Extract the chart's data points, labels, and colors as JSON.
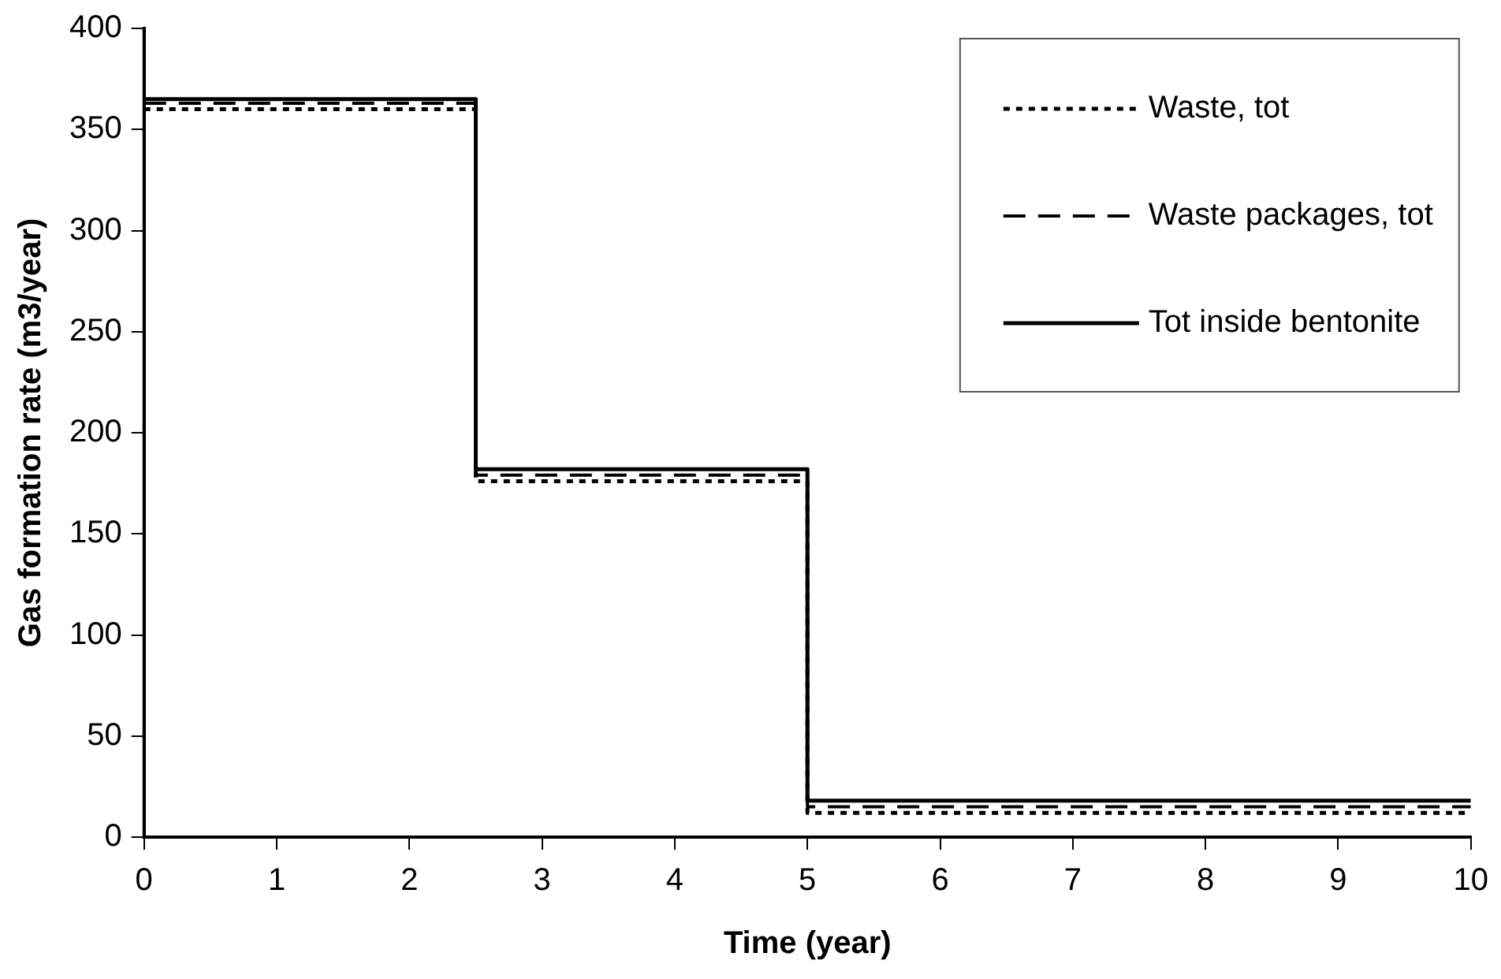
{
  "chart_data": {
    "type": "step",
    "xlabel": "Time (year)",
    "ylabel": "Gas formation rate (m3/year)",
    "x": [
      0,
      2.5,
      5,
      10
    ],
    "series": [
      {
        "name": "Waste, tot",
        "color": "#000000",
        "line_style": "dotted",
        "values": [
          360,
          176,
          12,
          12
        ]
      },
      {
        "name": "Waste packages, tot",
        "color": "#000000",
        "line_style": "dashed",
        "values": [
          363,
          179,
          15,
          15
        ]
      },
      {
        "name": "Tot inside bentonite",
        "color": "#000000",
        "line_style": "solid",
        "values": [
          365,
          182,
          18,
          18
        ]
      }
    ],
    "xlim": [
      0,
      10
    ],
    "xticks": [
      0,
      1,
      2,
      3,
      4,
      5,
      6,
      7,
      8,
      9,
      10
    ],
    "ylim": [
      0,
      400
    ],
    "yticks": [
      0,
      50,
      100,
      150,
      200,
      250,
      300,
      350,
      400
    ],
    "grid": false,
    "legend": "top right",
    "marker": "none"
  }
}
